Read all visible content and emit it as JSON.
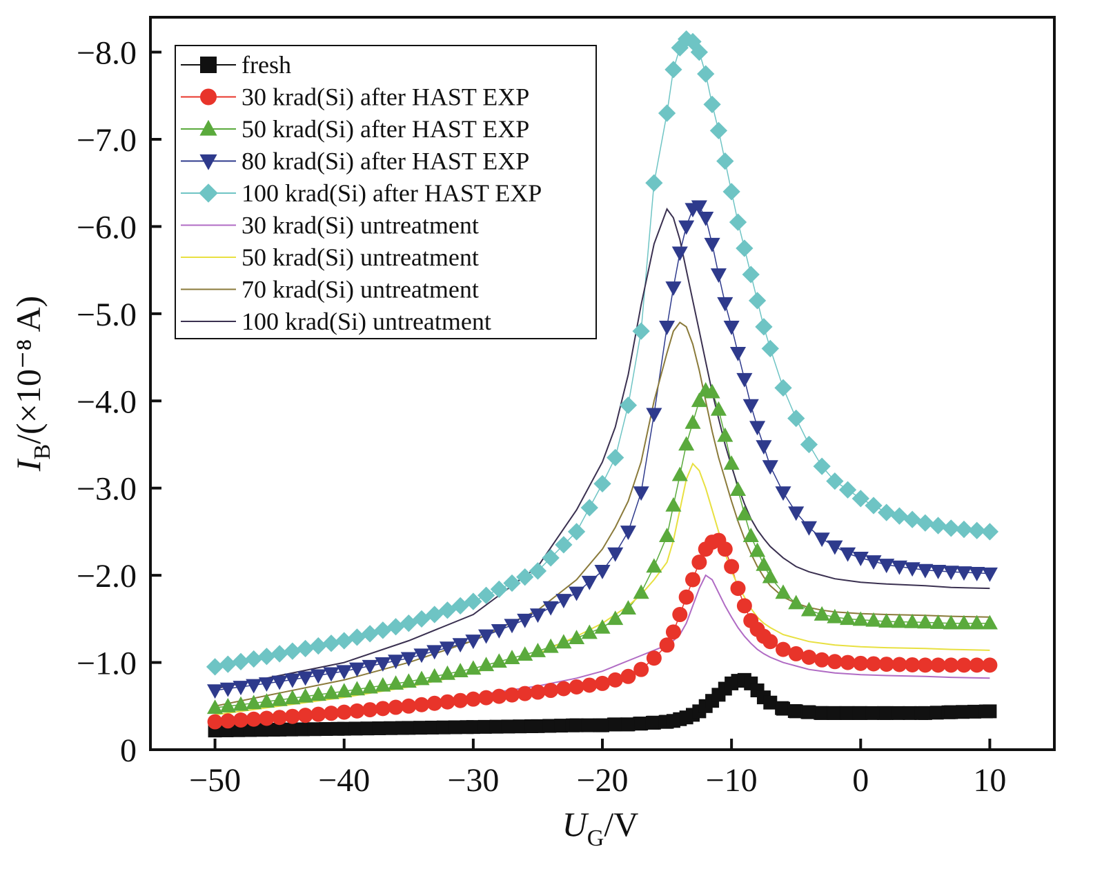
{
  "chart_data": {
    "type": "scatter",
    "xlabel": {
      "symbol": "U",
      "sub": "G",
      "rest": "/V"
    },
    "ylabel": {
      "symbol": "I",
      "sub": "B",
      "rest": "/(×10⁻⁸ A)"
    },
    "xlim": [
      -55,
      15
    ],
    "ylim": [
      0,
      -8.4
    ],
    "xticks": [
      -50,
      -40,
      -30,
      -20,
      -10,
      0,
      10
    ],
    "xtick_labels": [
      "−50",
      "−40",
      "−30",
      "−20",
      "−10",
      "0",
      "10"
    ],
    "yticks": [
      0,
      -1,
      -2,
      -3,
      -4,
      -5,
      -6,
      -7,
      -8
    ],
    "ytick_labels": [
      "0",
      "−1.0",
      "−2.0",
      "−3.0",
      "−4.0",
      "−5.0",
      "−6.0",
      "−7.0",
      "−8.0"
    ],
    "legend_position": "top-left",
    "grid": false,
    "x": [
      -50,
      -45,
      -40,
      -35,
      -30,
      -25,
      -22,
      -20,
      -19,
      -18,
      -17,
      -16,
      -15,
      -14.5,
      -14,
      -13.5,
      -13,
      -12.5,
      -12,
      -11.5,
      -11,
      -10.5,
      -10,
      -9.5,
      -9,
      -8.5,
      -8,
      -7.5,
      -7,
      -6,
      -5,
      -4,
      -3,
      -2,
      -1,
      0,
      2,
      5,
      7,
      10
    ],
    "series": [
      {
        "name": "fresh",
        "marker": "square",
        "color": "#111111",
        "values": [
          -0.22,
          -0.23,
          -0.24,
          -0.25,
          -0.26,
          -0.27,
          -0.28,
          -0.28,
          -0.29,
          -0.29,
          -0.3,
          -0.31,
          -0.32,
          -0.33,
          -0.35,
          -0.37,
          -0.4,
          -0.44,
          -0.5,
          -0.56,
          -0.63,
          -0.7,
          -0.76,
          -0.79,
          -0.8,
          -0.76,
          -0.68,
          -0.6,
          -0.54,
          -0.47,
          -0.44,
          -0.43,
          -0.42,
          -0.42,
          -0.42,
          -0.42,
          -0.42,
          -0.42,
          -0.43,
          -0.44
        ]
      },
      {
        "name": "30 krad(Si) after HAST EXP",
        "marker": "circle",
        "color": "#e8342a",
        "values": [
          -0.32,
          -0.37,
          -0.43,
          -0.5,
          -0.58,
          -0.66,
          -0.72,
          -0.76,
          -0.8,
          -0.84,
          -0.92,
          -1.05,
          -1.2,
          -1.35,
          -1.55,
          -1.75,
          -1.95,
          -2.15,
          -2.3,
          -2.38,
          -2.4,
          -2.3,
          -2.1,
          -1.85,
          -1.65,
          -1.48,
          -1.38,
          -1.3,
          -1.24,
          -1.15,
          -1.1,
          -1.06,
          -1.03,
          -1.01,
          -1.0,
          -0.99,
          -0.98,
          -0.97,
          -0.97,
          -0.97
        ]
      },
      {
        "name": "50 krad(Si) after HAST EXP",
        "marker": "triangle-up",
        "color": "#5aaa3c",
        "values": [
          -0.48,
          -0.57,
          -0.67,
          -0.78,
          -0.93,
          -1.13,
          -1.28,
          -1.4,
          -1.5,
          -1.62,
          -1.8,
          -2.1,
          -2.45,
          -2.8,
          -3.15,
          -3.5,
          -3.75,
          -4.0,
          -4.12,
          -4.1,
          -3.9,
          -3.6,
          -3.28,
          -2.98,
          -2.7,
          -2.45,
          -2.28,
          -2.12,
          -1.98,
          -1.8,
          -1.68,
          -1.6,
          -1.55,
          -1.52,
          -1.5,
          -1.49,
          -1.47,
          -1.46,
          -1.45,
          -1.45
        ]
      },
      {
        "name": "80 krad(Si) after HAST EXP",
        "marker": "triangle-down",
        "color": "#2e3a8c",
        "values": [
          -0.68,
          -0.78,
          -0.9,
          -1.05,
          -1.25,
          -1.55,
          -1.8,
          -2.05,
          -2.25,
          -2.5,
          -2.95,
          -3.85,
          -4.85,
          -5.3,
          -5.7,
          -6.0,
          -6.2,
          -6.23,
          -6.1,
          -5.8,
          -5.45,
          -5.12,
          -4.85,
          -4.55,
          -4.25,
          -3.95,
          -3.7,
          -3.48,
          -3.25,
          -2.95,
          -2.72,
          -2.55,
          -2.42,
          -2.33,
          -2.25,
          -2.2,
          -2.12,
          -2.06,
          -2.04,
          -2.02
        ]
      },
      {
        "name": "100 krad(Si) after HAST EXP",
        "marker": "diamond",
        "color": "#6ec4c4",
        "values": [
          -0.95,
          -1.1,
          -1.25,
          -1.45,
          -1.7,
          -2.05,
          -2.5,
          -3.05,
          -3.35,
          -3.95,
          -4.8,
          -6.5,
          -7.3,
          -7.8,
          -8.05,
          -8.15,
          -8.12,
          -8.0,
          -7.75,
          -7.4,
          -7.1,
          -6.75,
          -6.4,
          -6.05,
          -5.75,
          -5.45,
          -5.15,
          -4.85,
          -4.6,
          -4.15,
          -3.8,
          -3.5,
          -3.25,
          -3.08,
          -2.98,
          -2.88,
          -2.72,
          -2.6,
          -2.54,
          -2.5
        ]
      },
      {
        "name": "30 krad(Si) untreatment",
        "marker": "line",
        "color": "#b06bc4",
        "values": [
          -0.33,
          -0.4,
          -0.46,
          -0.53,
          -0.62,
          -0.73,
          -0.82,
          -0.9,
          -0.96,
          -1.02,
          -1.08,
          -1.14,
          -1.2,
          -1.25,
          -1.32,
          -1.45,
          -1.65,
          -1.85,
          -2.0,
          -1.95,
          -1.8,
          -1.65,
          -1.52,
          -1.4,
          -1.3,
          -1.22,
          -1.15,
          -1.1,
          -1.06,
          -1.0,
          -0.96,
          -0.92,
          -0.9,
          -0.88,
          -0.87,
          -0.86,
          -0.85,
          -0.84,
          -0.83,
          -0.82
        ]
      },
      {
        "name": "50 krad(Si) untreatment",
        "marker": "line",
        "color": "#e8e040",
        "values": [
          -0.4,
          -0.5,
          -0.6,
          -0.72,
          -0.88,
          -1.1,
          -1.3,
          -1.45,
          -1.55,
          -1.65,
          -1.78,
          -1.95,
          -2.15,
          -2.4,
          -2.75,
          -3.1,
          -3.28,
          -3.2,
          -3.0,
          -2.75,
          -2.5,
          -2.25,
          -2.05,
          -1.88,
          -1.75,
          -1.62,
          -1.52,
          -1.45,
          -1.4,
          -1.32,
          -1.28,
          -1.24,
          -1.22,
          -1.2,
          -1.19,
          -1.18,
          -1.17,
          -1.16,
          -1.15,
          -1.14
        ]
      },
      {
        "name": "70 krad(Si) untreatment",
        "marker": "line",
        "color": "#8a7a3a",
        "values": [
          -0.5,
          -0.65,
          -0.8,
          -1.0,
          -1.25,
          -1.6,
          -1.95,
          -2.3,
          -2.55,
          -2.85,
          -3.3,
          -4.0,
          -4.55,
          -4.8,
          -4.9,
          -4.85,
          -4.65,
          -4.35,
          -4.0,
          -3.65,
          -3.35,
          -3.1,
          -2.85,
          -2.62,
          -2.42,
          -2.25,
          -2.1,
          -1.98,
          -1.88,
          -1.75,
          -1.68,
          -1.63,
          -1.6,
          -1.58,
          -1.57,
          -1.56,
          -1.55,
          -1.54,
          -1.53,
          -1.52
        ]
      },
      {
        "name": "100 krad(Si) untreatment",
        "marker": "line",
        "color": "#3a3050",
        "values": [
          -0.7,
          -0.85,
          -1.0,
          -1.25,
          -1.55,
          -2.1,
          -2.75,
          -3.3,
          -3.7,
          -4.3,
          -5.1,
          -5.8,
          -6.2,
          -6.1,
          -5.85,
          -5.5,
          -5.15,
          -4.8,
          -4.45,
          -4.1,
          -3.8,
          -3.5,
          -3.25,
          -3.02,
          -2.82,
          -2.65,
          -2.52,
          -2.42,
          -2.33,
          -2.2,
          -2.1,
          -2.04,
          -2.0,
          -1.96,
          -1.94,
          -1.92,
          -1.9,
          -1.88,
          -1.86,
          -1.85
        ]
      }
    ]
  }
}
